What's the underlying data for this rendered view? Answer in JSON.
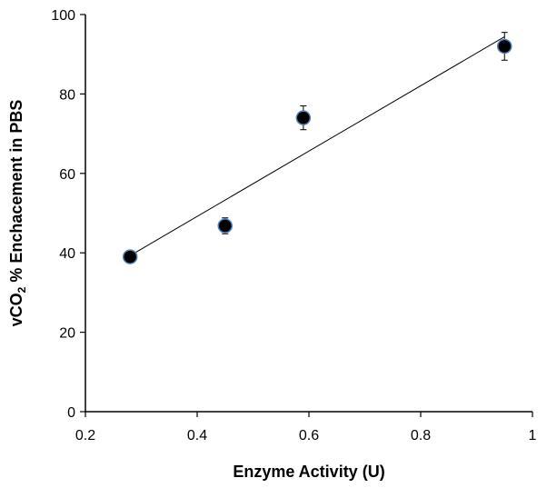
{
  "chart_data": {
    "type": "scatter",
    "title": "",
    "xlabel": "Enzyme Activity (U)",
    "ylabel_parts": {
      "before": "vCO",
      "subscript": "2",
      "after": " % Enchacement in PBS"
    },
    "xlim": [
      0.2,
      1.0
    ],
    "ylim": [
      0,
      100
    ],
    "xticks": [
      0.2,
      0.4,
      0.6,
      0.8,
      1.0
    ],
    "xtick_labels": [
      "0.2",
      "0.4",
      "0.6",
      "0.8",
      "1"
    ],
    "yticks": [
      0,
      20,
      40,
      60,
      80,
      100
    ],
    "ytick_labels": [
      "0",
      "20",
      "40",
      "60",
      "80",
      "100"
    ],
    "grid": false,
    "legend": "none",
    "series": [
      {
        "x": [
          0.28,
          0.45,
          0.59,
          0.95
        ],
        "y": [
          39,
          46.8,
          74,
          92
        ],
        "yerr": [
          0.5,
          2,
          3,
          3.5
        ],
        "marker_fill": "#000000",
        "marker_edge": "#4f81bd"
      }
    ],
    "trendline": {
      "type": "linear",
      "x": [
        0.28,
        0.95
      ],
      "y": [
        39.3,
        94.4
      ],
      "color": "#000000"
    }
  }
}
